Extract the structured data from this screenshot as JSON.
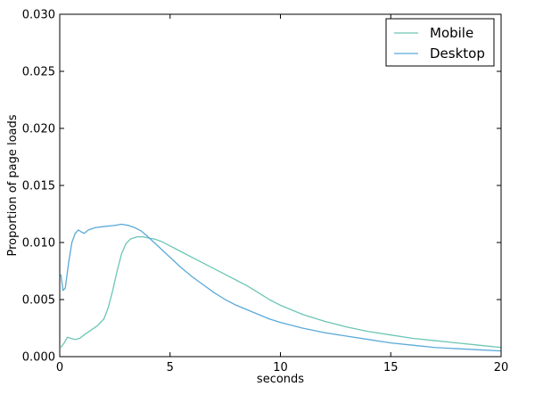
{
  "chart_data": {
    "type": "line",
    "title": "",
    "xlabel": "seconds",
    "ylabel": "Proportion of page loads",
    "xlim": [
      0,
      20
    ],
    "ylim": [
      0,
      0.03
    ],
    "x_ticks": [
      0,
      5,
      10,
      15,
      20
    ],
    "y_ticks": [
      0.0,
      0.005,
      0.01,
      0.015,
      0.02,
      0.025,
      0.03
    ],
    "x_tick_labels": [
      "0",
      "5",
      "10",
      "15",
      "20"
    ],
    "y_tick_labels": [
      "0.000",
      "0.005",
      "0.010",
      "0.015",
      "0.020",
      "0.025",
      "0.030"
    ],
    "grid": false,
    "legend_position": "top-right",
    "series": [
      {
        "name": "Mobile",
        "color": "#6cc6b6",
        "points": [
          [
            0.05,
            0.0008
          ],
          [
            0.2,
            0.0012
          ],
          [
            0.35,
            0.0017
          ],
          [
            0.5,
            0.0016
          ],
          [
            0.7,
            0.0015
          ],
          [
            0.9,
            0.0016
          ],
          [
            1.1,
            0.0019
          ],
          [
            1.4,
            0.0023
          ],
          [
            1.7,
            0.0027
          ],
          [
            2.0,
            0.0033
          ],
          [
            2.2,
            0.0043
          ],
          [
            2.4,
            0.0058
          ],
          [
            2.6,
            0.0075
          ],
          [
            2.8,
            0.009
          ],
          [
            3.0,
            0.0099
          ],
          [
            3.2,
            0.0103
          ],
          [
            3.5,
            0.0105
          ],
          [
            3.8,
            0.0105
          ],
          [
            4.0,
            0.0104
          ],
          [
            4.3,
            0.0103
          ],
          [
            4.6,
            0.0101
          ],
          [
            5.0,
            0.0097
          ],
          [
            5.5,
            0.0092
          ],
          [
            6.0,
            0.0087
          ],
          [
            6.5,
            0.0082
          ],
          [
            7.0,
            0.0077
          ],
          [
            7.5,
            0.0072
          ],
          [
            8.0,
            0.0067
          ],
          [
            8.5,
            0.0062
          ],
          [
            9.0,
            0.0056
          ],
          [
            9.5,
            0.005
          ],
          [
            10.0,
            0.0045
          ],
          [
            11.0,
            0.0037
          ],
          [
            12.0,
            0.0031
          ],
          [
            13.0,
            0.0026
          ],
          [
            14.0,
            0.0022
          ],
          [
            15.0,
            0.0019
          ],
          [
            16.0,
            0.0016
          ],
          [
            17.0,
            0.0014
          ],
          [
            18.0,
            0.0012
          ],
          [
            19.0,
            0.001
          ],
          [
            20.0,
            0.0008
          ]
        ]
      },
      {
        "name": "Desktop",
        "color": "#5aaad8",
        "points": [
          [
            0.05,
            0.0072
          ],
          [
            0.15,
            0.0058
          ],
          [
            0.25,
            0.006
          ],
          [
            0.4,
            0.0082
          ],
          [
            0.55,
            0.01
          ],
          [
            0.7,
            0.0108
          ],
          [
            0.85,
            0.0111
          ],
          [
            1.0,
            0.0109
          ],
          [
            1.1,
            0.0108
          ],
          [
            1.3,
            0.0111
          ],
          [
            1.6,
            0.0113
          ],
          [
            2.0,
            0.0114
          ],
          [
            2.5,
            0.0115
          ],
          [
            2.8,
            0.0116
          ],
          [
            3.1,
            0.0115
          ],
          [
            3.4,
            0.0113
          ],
          [
            3.7,
            0.011
          ],
          [
            4.0,
            0.0105
          ],
          [
            4.5,
            0.0096
          ],
          [
            5.0,
            0.0087
          ],
          [
            5.5,
            0.0078
          ],
          [
            6.0,
            0.007
          ],
          [
            6.5,
            0.0063
          ],
          [
            7.0,
            0.0056
          ],
          [
            7.5,
            0.005
          ],
          [
            8.0,
            0.0045
          ],
          [
            8.5,
            0.0041
          ],
          [
            9.0,
            0.0037
          ],
          [
            9.5,
            0.0033
          ],
          [
            10.0,
            0.003
          ],
          [
            11.0,
            0.0025
          ],
          [
            12.0,
            0.0021
          ],
          [
            13.0,
            0.0018
          ],
          [
            14.0,
            0.0015
          ],
          [
            15.0,
            0.0012
          ],
          [
            16.0,
            0.001
          ],
          [
            17.0,
            0.0008
          ],
          [
            18.0,
            0.0007
          ],
          [
            19.0,
            0.0006
          ],
          [
            20.0,
            0.0005
          ]
        ]
      }
    ]
  }
}
